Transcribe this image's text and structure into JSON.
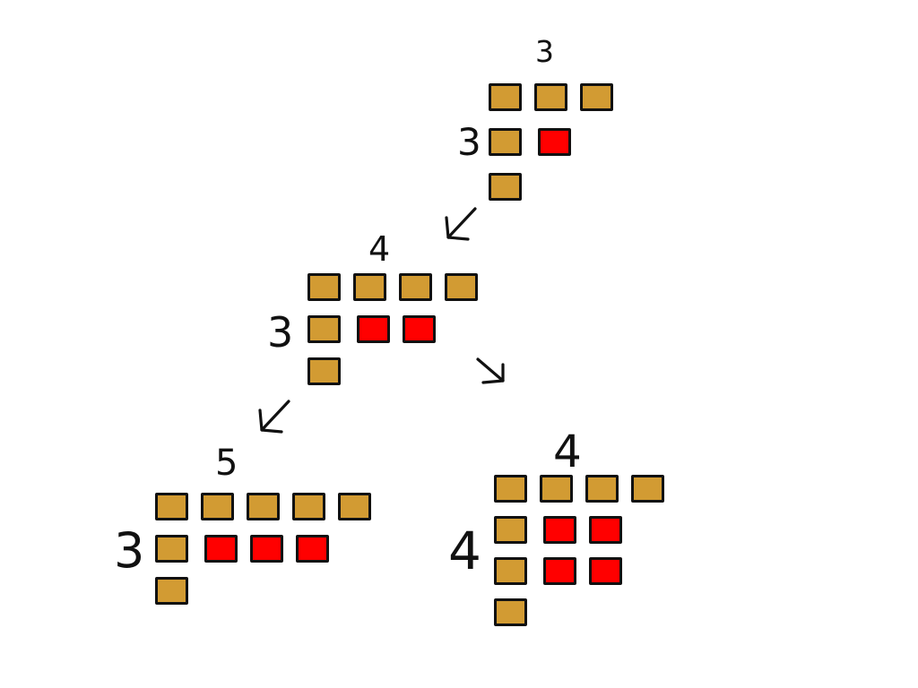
{
  "colors": {
    "gold": "#D29B33",
    "red": "#FF0000",
    "ink": "#111111",
    "background": "#FFFFFF"
  },
  "diagrams": [
    {
      "id": "stage-1",
      "width_label": "3",
      "height_label": "3",
      "top_row_squares": 3,
      "left_column_squares": 3,
      "red_grid": {
        "rows": 1,
        "cols": 1
      }
    },
    {
      "id": "stage-2",
      "width_label": "4",
      "height_label": "3",
      "top_row_squares": 4,
      "left_column_squares": 3,
      "red_grid": {
        "rows": 1,
        "cols": 2
      }
    },
    {
      "id": "stage-3-left",
      "width_label": "5",
      "height_label": "3",
      "top_row_squares": 5,
      "left_column_squares": 3,
      "red_grid": {
        "rows": 1,
        "cols": 3
      }
    },
    {
      "id": "stage-3-right",
      "width_label": "4",
      "height_label": "4",
      "top_row_squares": 4,
      "left_column_squares": 4,
      "red_grid": {
        "rows": 2,
        "cols": 2
      }
    }
  ],
  "arrows": [
    {
      "from": "stage-1",
      "to": "stage-2",
      "direction": "down-left"
    },
    {
      "from": "stage-2",
      "to": "stage-3-left",
      "direction": "down-left"
    },
    {
      "from": "stage-2",
      "to": "stage-3-right",
      "direction": "down-right"
    }
  ]
}
